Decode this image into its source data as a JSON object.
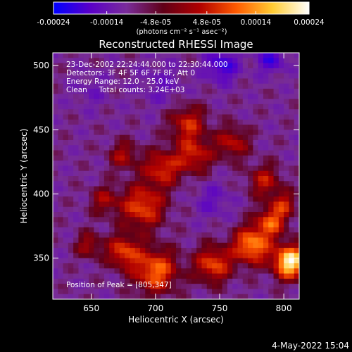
{
  "chart_data": {
    "type": "heatmap",
    "title": "Reconstructed RHESSI Image",
    "xlabel": "Heliocentric X (arcsec)",
    "ylabel": "Heliocentric Y (arcsec)",
    "xlim": [
      620,
      812
    ],
    "ylim": [
      318,
      510
    ],
    "x_ticks": [
      650,
      700,
      750,
      800
    ],
    "y_ticks": [
      350,
      400,
      450,
      500
    ],
    "colorbar": {
      "range": [
        -0.00024,
        0.00024
      ],
      "tick_values": [
        -0.00024,
        -0.00014,
        -4.8e-05,
        4.8e-05,
        0.00014,
        0.00024
      ],
      "tick_labels": [
        "-0.00024",
        "-0.00014",
        "-4.8e-05",
        "4.8e-05",
        "0.00014",
        "0.00024"
      ],
      "unit_label": "(photons cm⁻² s⁻¹ asec⁻²)",
      "colors": [
        "#0000ff",
        "#5a00c8",
        "#7a2c9a",
        "#600018",
        "#b00000",
        "#ff5a00",
        "#ffcc33",
        "#ffffff"
      ]
    },
    "annotations": [
      "23-Dec-2002 22:24:44.000 to 22:30:44.000",
      "Detectors: 3F 4F 5F 6F 7F 8F, Att 0",
      "Energy Range: 12.0 - 25.0 keV",
      "Clean     Total counts: 3.24E+03"
    ],
    "peak_label": "Position of Peak = [805,347]",
    "peak": [
      805,
      347
    ],
    "grid": false
  },
  "footer": {
    "timestamp": "4-May-2022 15:04"
  }
}
